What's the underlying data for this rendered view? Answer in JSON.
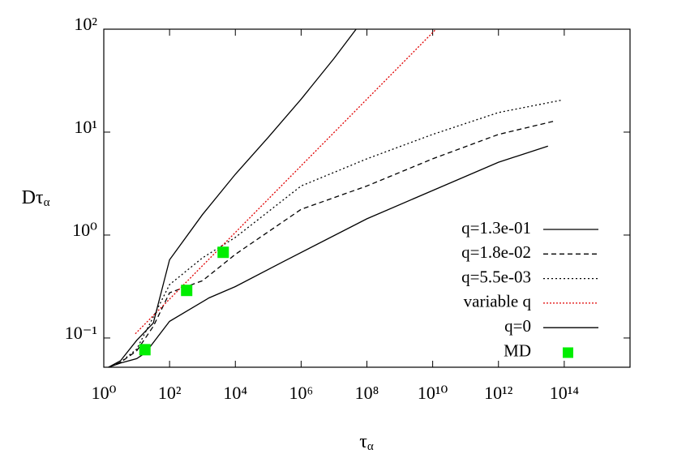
{
  "chart_data": {
    "type": "line",
    "xlog": true,
    "ylog": true,
    "xlabel": {
      "main": "τ",
      "sub": "α"
    },
    "ylabel": {
      "main": "Dτ",
      "sub": "α"
    },
    "xlim": [
      1,
      1e+16
    ],
    "ylim": [
      0.052,
      100
    ],
    "xticks": [
      {
        "value": 1,
        "label": "10⁰"
      },
      {
        "value": 100,
        "label": "10²"
      },
      {
        "value": 10000,
        "label": "10⁴"
      },
      {
        "value": 1000000,
        "label": "10⁶"
      },
      {
        "value": 100000000,
        "label": "10⁸"
      },
      {
        "value": 10000000000,
        "label": "10¹⁰"
      },
      {
        "value": 1000000000000,
        "label": "10¹²"
      },
      {
        "value": 100000000000000,
        "label": "10¹⁴"
      }
    ],
    "yticks": [
      {
        "value": 0.1,
        "label": "10⁻¹"
      },
      {
        "value": 1,
        "label": "10⁰"
      },
      {
        "value": 10,
        "label": "10¹"
      },
      {
        "value": 100,
        "label": "10²"
      }
    ],
    "legend": "bottom-right",
    "series": [
      {
        "name": "q=1.3e-01",
        "color": "#000000",
        "dash": "none",
        "x": [
          1.4,
          3.2,
          10,
          18.6,
          100,
          1580,
          10000,
          280000,
          100000000,
          10000000000,
          1000000000000,
          32000000000000
        ],
        "values": [
          0.052,
          0.057,
          0.063,
          0.072,
          0.145,
          0.245,
          0.316,
          0.55,
          1.44,
          2.71,
          5.1,
          7.3
        ]
      },
      {
        "name": "q=1.8e-02",
        "color": "#000000",
        "dash": "6,4",
        "x": [
          1.4,
          3.2,
          10,
          32,
          100,
          1000,
          10000,
          1000000,
          100000000,
          10000000000,
          1000000000000,
          56000000000000
        ],
        "values": [
          0.052,
          0.058,
          0.075,
          0.13,
          0.275,
          0.36,
          0.65,
          1.78,
          3.0,
          5.5,
          9.5,
          12.9
        ]
      },
      {
        "name": "q=5.5e-03",
        "color": "#000000",
        "dash": "2,3",
        "x": [
          1.4,
          3.2,
          10,
          32,
          100,
          1000,
          10000,
          1000000,
          100000000,
          10000000000,
          1000000000000,
          79000000000000
        ],
        "values": [
          0.052,
          0.058,
          0.078,
          0.16,
          0.33,
          0.6,
          0.95,
          3.0,
          5.5,
          9.5,
          15.5,
          20.4
        ]
      },
      {
        "name": "variable q",
        "color": "#e00000",
        "dash": "2,2",
        "x": [
          9.1,
          12600000000
        ],
        "values": [
          0.11,
          100
        ]
      },
      {
        "name": "q=0",
        "color": "#000000",
        "dash": "none",
        "x": [
          1.4,
          3.2,
          10,
          32,
          100,
          1000,
          10000,
          100000,
          1000000,
          10000000,
          47000000
        ],
        "values": [
          0.052,
          0.06,
          0.095,
          0.14,
          0.575,
          1.58,
          3.9,
          8.9,
          20.9,
          52,
          100
        ]
      },
      {
        "name": "MD",
        "color": "#00ee00",
        "marker": "square",
        "x": [
          17.8,
          331,
          4270
        ],
        "values": [
          0.077,
          0.29,
          0.68
        ]
      }
    ]
  }
}
